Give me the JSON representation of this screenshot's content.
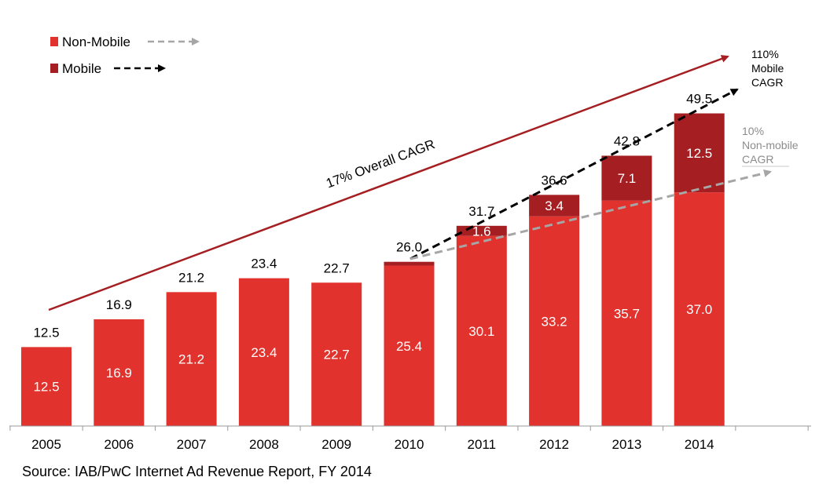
{
  "chart_data": {
    "type": "bar",
    "stacked": true,
    "categories": [
      "2005",
      "2006",
      "2007",
      "2008",
      "2009",
      "2010",
      "2011",
      "2012",
      "2013",
      "2014"
    ],
    "series": [
      {
        "name": "Non-Mobile",
        "color": "#e1322d",
        "values": [
          12.5,
          16.9,
          21.2,
          23.4,
          22.7,
          25.4,
          30.1,
          33.2,
          35.7,
          37.0
        ]
      },
      {
        "name": "Mobile",
        "color": "#a51f22",
        "values": [
          0,
          0,
          0,
          0,
          0,
          0.6,
          1.6,
          3.4,
          7.1,
          12.5
        ]
      }
    ],
    "totals": [
      12.5,
      16.9,
      21.2,
      23.4,
      22.7,
      26.0,
      31.7,
      36.6,
      42.8,
      49.5
    ],
    "total_labels": [
      "12.5",
      "16.9",
      "21.2",
      "23.4",
      "22.7",
      "26.0",
      "31.7",
      "36.6",
      "42.8",
      "49.5"
    ],
    "non_mobile_labels": [
      "12.5",
      "16.9",
      "21.2",
      "23.4",
      "22.7",
      "25.4",
      "30.1",
      "33.2",
      "35.7",
      "37.0"
    ],
    "mobile_labels": [
      "",
      "",
      "",
      "",
      "",
      "",
      "1.6",
      "3.4",
      "7.1",
      "12.5"
    ],
    "ylim": [
      0,
      52
    ],
    "legend": {
      "position": "top-left",
      "items": [
        {
          "label": "Non-Mobile",
          "color": "#e1322d",
          "arrow_color": "#a6a6a6"
        },
        {
          "label": "Mobile",
          "color": "#a51f22",
          "arrow_color": "#000000"
        }
      ]
    },
    "annotations": {
      "overall": {
        "text": "17% Overall CAGR",
        "color": "#a51f22"
      },
      "mobile": {
        "lines": [
          "110%",
          "Mobile",
          "CAGR"
        ],
        "color": "#000000"
      },
      "non_mobile": {
        "lines": [
          "10%",
          "Non-mobile",
          "CAGR"
        ],
        "color": "#8c8c8c"
      }
    },
    "grid": false,
    "xlabel": "",
    "ylabel": ""
  },
  "source": "Source: IAB/PwC Internet Ad Revenue Report, FY 2014"
}
